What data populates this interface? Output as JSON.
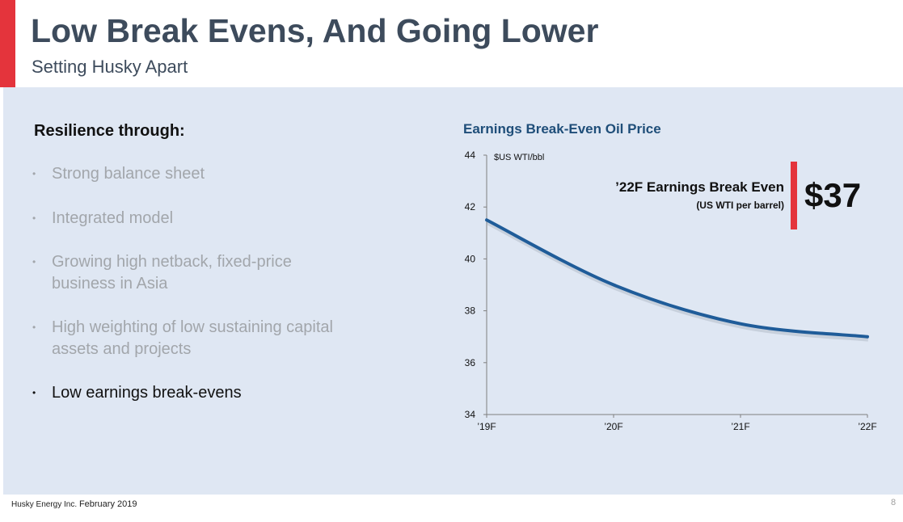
{
  "header": {
    "title": "Low Break Evens, And Going Lower",
    "subtitle": "Setting Husky Apart",
    "accent_color": "#e4343c"
  },
  "left": {
    "heading": "Resilience through:",
    "bullet_glyph": "•",
    "bullets": [
      {
        "text": "Strong balance sheet",
        "highlighted": false
      },
      {
        "text": "Integrated model",
        "highlighted": false
      },
      {
        "text": "Growing high netback, fixed-price business in Asia",
        "highlighted": false
      },
      {
        "text": "High weighting of low sustaining capital assets and projects",
        "highlighted": false
      },
      {
        "text": "Low earnings break-evens",
        "highlighted": true
      }
    ]
  },
  "callout": {
    "label": "’22F Earnings Break Even",
    "sublabel": "(US WTI per barrel)",
    "value": "$37"
  },
  "chart_data": {
    "type": "line",
    "title": "Earnings Break-Even Oil Price",
    "ylabel": "$US WTI/bbl",
    "xlabel": "",
    "categories": [
      "’19F",
      "’20F",
      "’21F",
      "’22F"
    ],
    "series": [
      {
        "values": [
          41.5,
          39.0,
          37.5,
          37.0
        ],
        "color": "#1f5c99"
      }
    ],
    "ylim": [
      34,
      44
    ],
    "yticks": [
      34,
      36,
      38,
      40,
      42,
      44
    ],
    "grid": false
  },
  "footer": {
    "company": "Husky Energy Inc.",
    "date": "February 2019",
    "page": "8"
  }
}
